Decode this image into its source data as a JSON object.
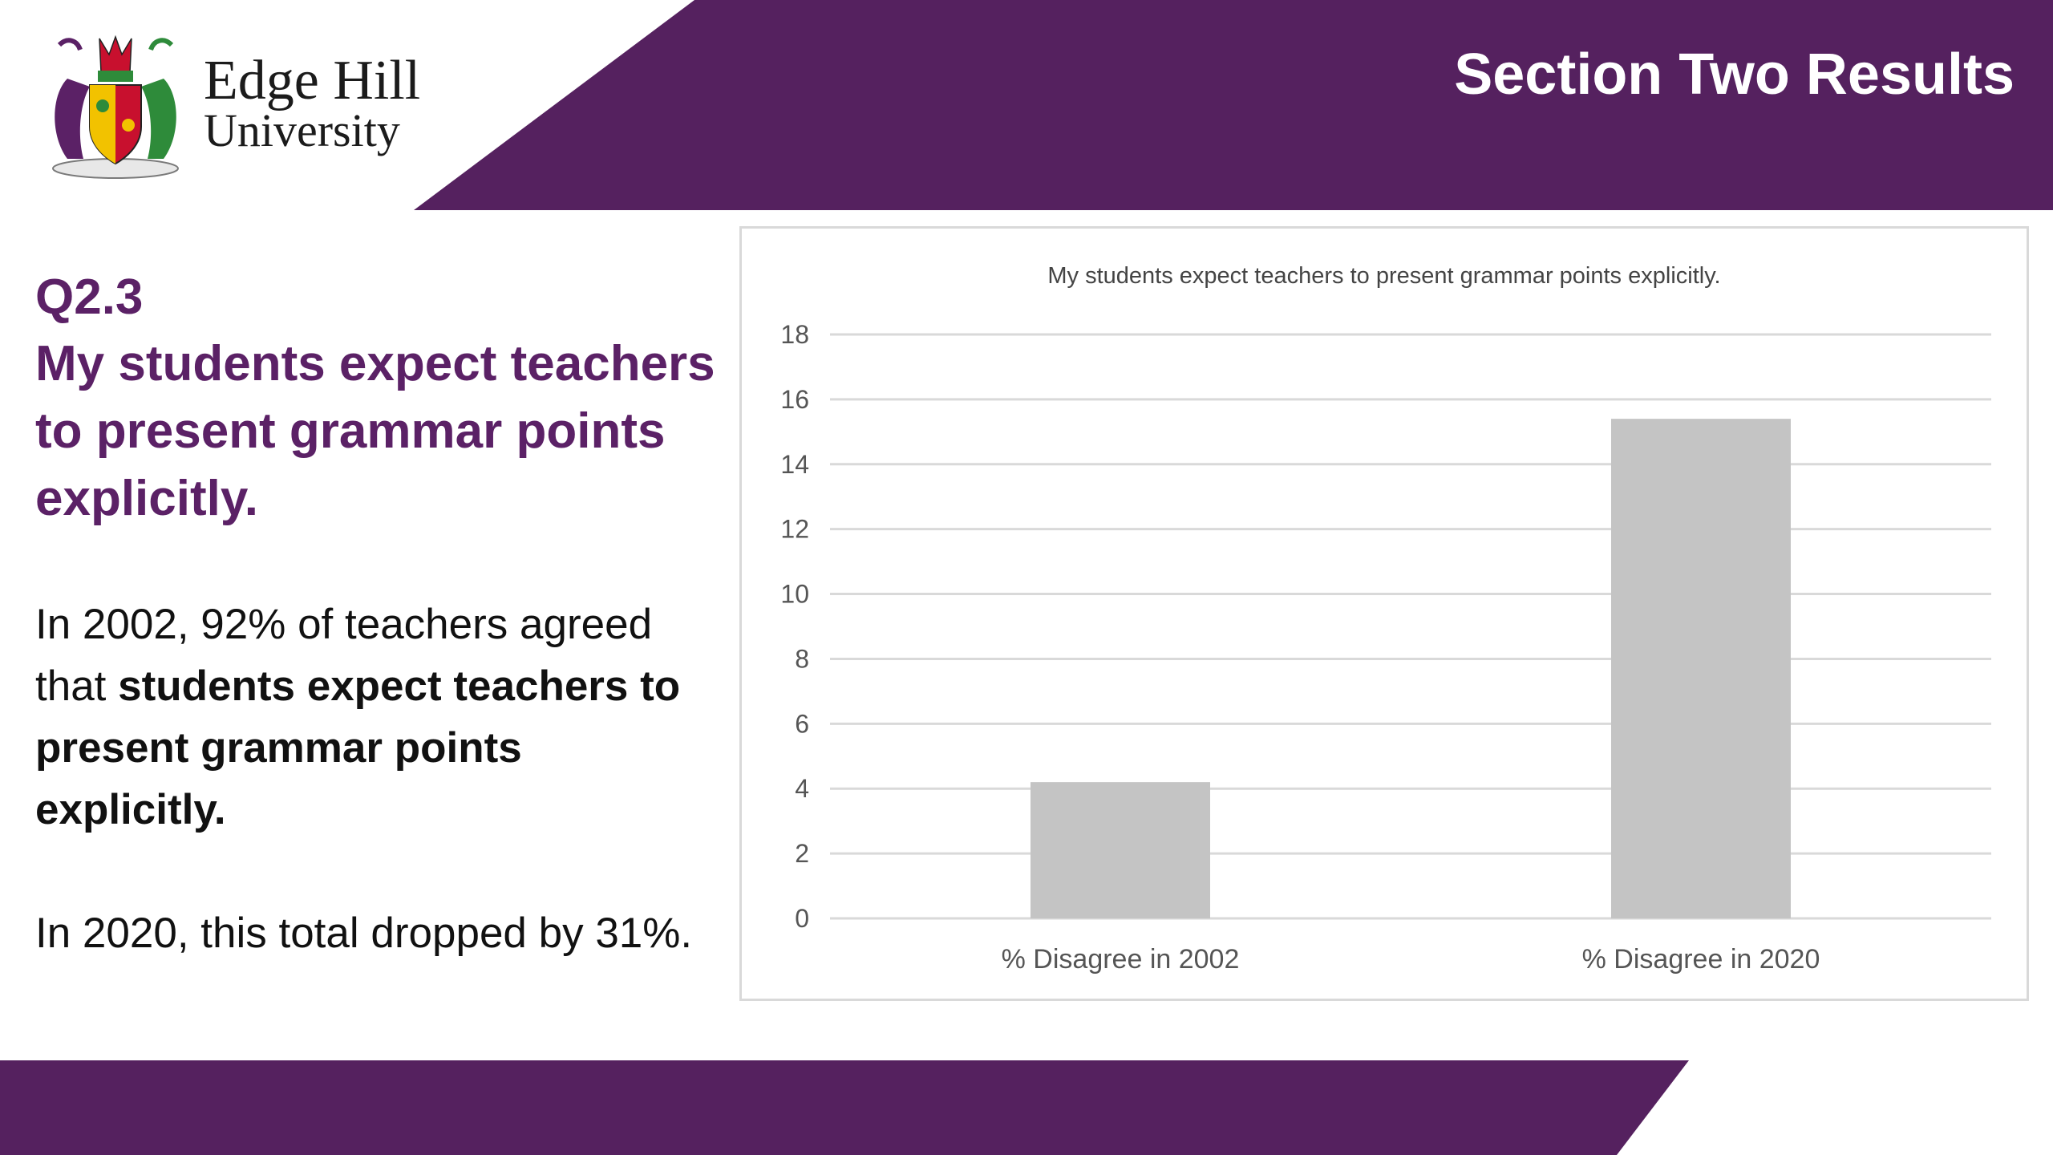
{
  "header": {
    "section_title": "Section Two Results",
    "logo_line1": "Edge Hill",
    "logo_line2": "University"
  },
  "colors": {
    "brand_purple": "#55215f",
    "heading_purple": "#5b2166",
    "bar_gray": "#c4c4c4",
    "grid_gray": "#d9d9d9"
  },
  "left": {
    "question_id": "Q2.3",
    "question_title": "My students expect teachers to present grammar points explicitly.",
    "para1_pre": "In 2002, 92% of teachers agreed that ",
    "para1_bold": "students expect teachers to present grammar points explicitly.",
    "para2": "In 2020, this total dropped by 31%."
  },
  "chart_data": {
    "type": "bar",
    "title": "My students expect teachers to present grammar points explicitly.",
    "categories": [
      "% Disagree in 2002",
      "% Disagree in 2020"
    ],
    "values": [
      4.2,
      15.4
    ],
    "ylim": [
      0,
      18
    ],
    "yticks": [
      0,
      2,
      4,
      6,
      8,
      10,
      12,
      14,
      16,
      18
    ],
    "xlabel": "",
    "ylabel": "",
    "grid": true,
    "legend": "none"
  }
}
